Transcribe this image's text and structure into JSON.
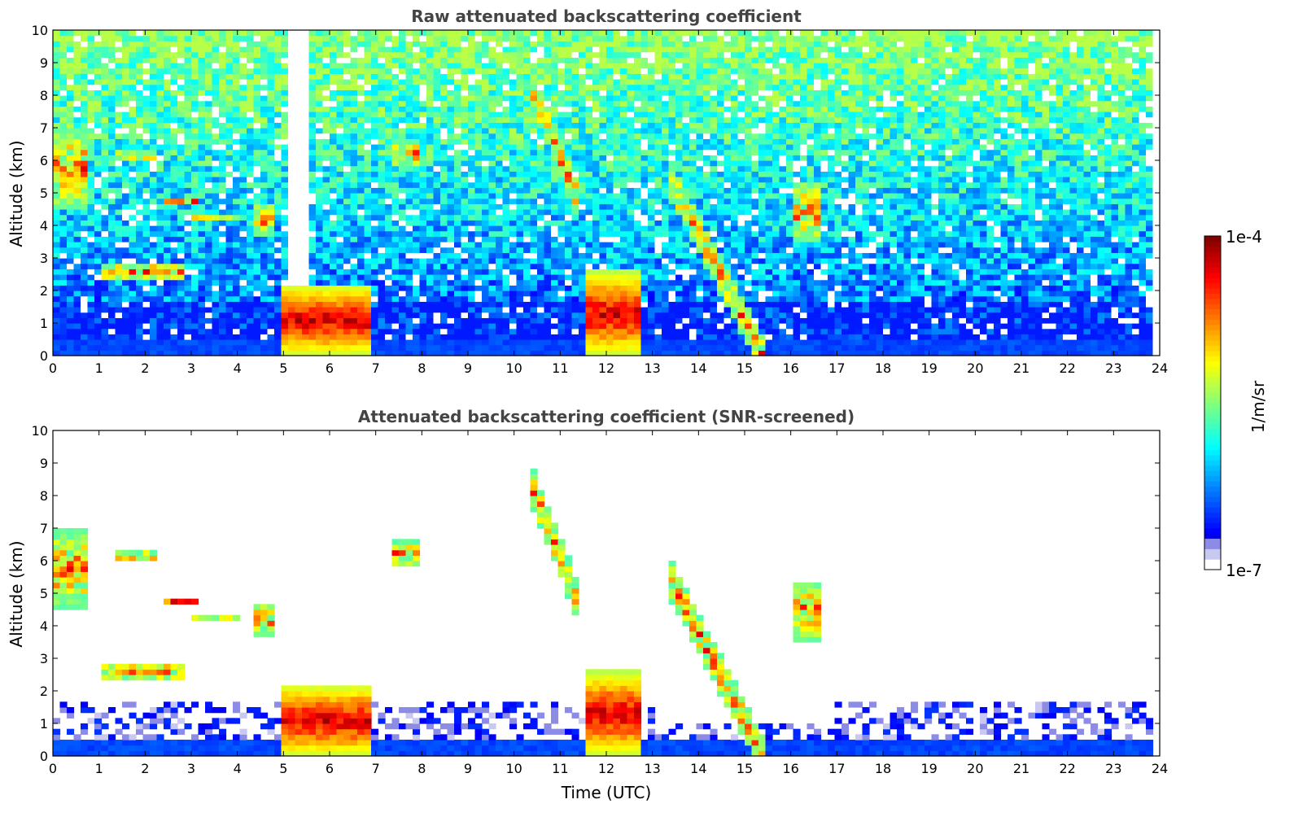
{
  "chart_data": [
    {
      "type": "heatmap",
      "title": "Raw attenuated backscattering coefficient",
      "xlabel": "",
      "ylabel": "Altitude (km)",
      "xlim": [
        0,
        24
      ],
      "ylim": [
        0,
        10
      ],
      "xticks": [
        "0",
        "1",
        "2",
        "3",
        "4",
        "5",
        "6",
        "7",
        "8",
        "9",
        "10",
        "11",
        "12",
        "13",
        "14",
        "15",
        "16",
        "17",
        "18",
        "19",
        "20",
        "21",
        "22",
        "23",
        "24"
      ],
      "yticks": [
        "0",
        "1",
        "2",
        "3",
        "4",
        "5",
        "6",
        "7",
        "8",
        "9",
        "10"
      ],
      "screened": false,
      "features": [
        {
          "kind": "boundary_layer",
          "t": [
            0,
            23.8
          ],
          "alt_max": 0.5
        },
        {
          "kind": "low_cloud",
          "t": [
            4.9,
            6.9
          ],
          "alt": [
            0,
            2.2
          ]
        },
        {
          "kind": "low_cloud",
          "t": [
            11.6,
            12.7
          ],
          "alt": [
            0,
            2.6
          ]
        },
        {
          "kind": "cirrus",
          "t": [
            0,
            0.8
          ],
          "alt": [
            4.5,
            7.0
          ]
        },
        {
          "kind": "cirrus",
          "t": [
            1.4,
            2.3
          ],
          "alt": [
            6.0,
            6.3
          ]
        },
        {
          "kind": "cirrus",
          "t": [
            2.4,
            3.1
          ],
          "alt": [
            4.6,
            4.9
          ]
        },
        {
          "kind": "cirrus",
          "t": [
            3.0,
            4.0
          ],
          "alt": [
            4.2,
            4.4
          ]
        },
        {
          "kind": "cirrus",
          "t": [
            4.4,
            4.8
          ],
          "alt": [
            3.7,
            4.7
          ]
        },
        {
          "kind": "cirrus",
          "t": [
            1.0,
            2.8
          ],
          "alt": [
            2.3,
            2.9
          ]
        },
        {
          "kind": "cirrus",
          "t": [
            7.3,
            7.9
          ],
          "alt": [
            5.8,
            6.6
          ]
        },
        {
          "kind": "cirrus_fall",
          "t": [
            10.3,
            11.4
          ],
          "alt": [
            4.7,
            8.6
          ]
        },
        {
          "kind": "cirrus_fall",
          "t": [
            13.4,
            15.4
          ],
          "alt": [
            0.0,
            5.4
          ]
        },
        {
          "kind": "cirrus",
          "t": [
            16.0,
            16.6
          ],
          "alt": [
            3.5,
            5.4
          ]
        },
        {
          "kind": "no_signal_column",
          "t": [
            5.1,
            5.6
          ],
          "alt": [
            2.2,
            10
          ]
        }
      ]
    },
    {
      "type": "heatmap",
      "title": "Attenuated backscattering coefficient (SNR-screened)",
      "xlabel": "Time (UTC)",
      "ylabel": "Altitude (km)",
      "xlim": [
        0,
        24
      ],
      "ylim": [
        0,
        10
      ],
      "xticks": [
        "0",
        "1",
        "2",
        "3",
        "4",
        "5",
        "6",
        "7",
        "8",
        "9",
        "10",
        "11",
        "12",
        "13",
        "14",
        "15",
        "16",
        "17",
        "18",
        "19",
        "20",
        "21",
        "22",
        "23",
        "24"
      ],
      "yticks": [
        "0",
        "1",
        "2",
        "3",
        "4",
        "5",
        "6",
        "7",
        "8",
        "9",
        "10"
      ],
      "screened": true
    }
  ],
  "colorbar": {
    "label": "1/m/sr",
    "min_label": "1e-7",
    "max_label": "1e-4",
    "colormap": "jet",
    "low_end_colors": [
      "#ffffff",
      "#c8c8f0",
      "#8c8ce6"
    ]
  }
}
